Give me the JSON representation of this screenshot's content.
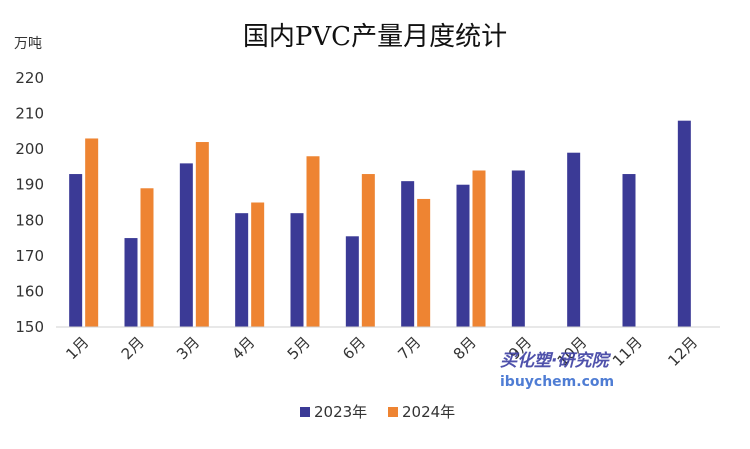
{
  "chart_data": {
    "type": "bar",
    "title": "国内PVC产量月度统计",
    "unit_label": "万吨",
    "categories": [
      "1月",
      "2月",
      "3月",
      "4月",
      "5月",
      "6月",
      "7月",
      "8月",
      "9月",
      "10月",
      "11月",
      "12月"
    ],
    "series": [
      {
        "name": "2023年",
        "color": "#3b3a96",
        "values": [
          193,
          175,
          196,
          182,
          182,
          175.5,
          191,
          190,
          194,
          199,
          193,
          208
        ]
      },
      {
        "name": "2024年",
        "color": "#ee8432",
        "values": [
          203,
          189,
          202,
          185,
          198,
          193,
          186,
          194,
          null,
          null,
          null,
          null
        ]
      }
    ],
    "yticks": [
      150,
      160,
      170,
      180,
      190,
      200,
      210,
      220
    ],
    "ylim": [
      150,
      225
    ],
    "grid": false,
    "legend": "bottom-center"
  },
  "watermark": {
    "line1": "买化塑·研究院",
    "line2": "ibuychem.com"
  }
}
